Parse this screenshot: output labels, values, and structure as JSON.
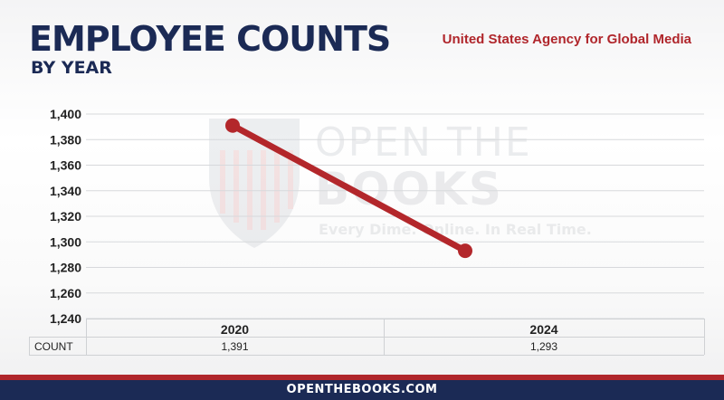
{
  "header": {
    "title": "EMPLOYEE COUNTS",
    "subtitle": "BY YEAR",
    "agency": "United States Agency for Global Media"
  },
  "watermark": {
    "line1": "OPEN THE",
    "line2": "BOOKS",
    "tagline": "Every Dime. Online. In Real Time."
  },
  "chart_data": {
    "type": "line",
    "title": "EMPLOYEE COUNTS",
    "subtitle": "BY YEAR",
    "categories": [
      "2020",
      "2024"
    ],
    "series": [
      {
        "values": [
          1391,
          1293
        ],
        "color": "#b3272b"
      }
    ],
    "ylim": [
      1240,
      1400
    ],
    "yticks": [
      1400,
      1380,
      1360,
      1340,
      1320,
      1300,
      1280,
      1260,
      1240
    ],
    "ytick_labels": [
      "1,400",
      "1,380",
      "1,360",
      "1,340",
      "1,320",
      "1,300",
      "1,280",
      "1,260",
      "1,240"
    ],
    "grid": true,
    "table": {
      "row_label": "COUNT",
      "values": [
        "1,391",
        "1,293"
      ]
    }
  },
  "footer": {
    "text": "OPENTHEBOOKS.COM"
  },
  "colors": {
    "navy": "#1b2a55",
    "red": "#b0262b"
  }
}
